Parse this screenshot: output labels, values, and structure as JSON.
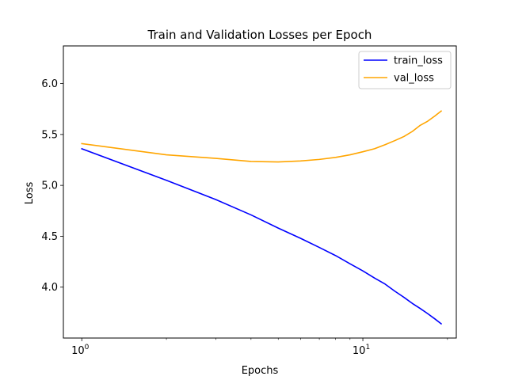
{
  "chart_data": {
    "type": "line",
    "title": "Train and Validation Losses per Epoch",
    "xlabel": "Epochs",
    "ylabel": "Loss",
    "xscale": "log",
    "xlim": [
      0.86,
      21.5
    ],
    "ylim": [
      3.5,
      6.37
    ],
    "grid": false,
    "legend_position": "top-right",
    "x": [
      0,
      1,
      2,
      3,
      4,
      5,
      6,
      7,
      8,
      9,
      10,
      11,
      12,
      13,
      14,
      15,
      16,
      17,
      18,
      19
    ],
    "x_tick_labels": [
      {
        "value": 1,
        "base": "10",
        "exp": "0"
      },
      {
        "value": 10,
        "base": "10",
        "exp": "1"
      }
    ],
    "y_ticks": [
      4.0,
      4.5,
      5.0,
      5.5,
      6.0
    ],
    "y_tick_labels": [
      "4.0",
      "4.5",
      "5.0",
      "5.5",
      "6.0"
    ],
    "series": [
      {
        "name": "train_loss",
        "color": "#0000ff",
        "values": [
          5.36,
          5.36,
          5.05,
          4.86,
          4.71,
          4.58,
          4.48,
          4.39,
          4.31,
          4.23,
          4.16,
          4.09,
          4.03,
          3.96,
          3.9,
          3.84,
          3.79,
          3.74,
          3.69,
          3.64
        ]
      },
      {
        "name": "val_loss",
        "color": "#ffa500",
        "values": [
          5.41,
          5.41,
          5.3,
          5.265,
          5.235,
          5.23,
          5.24,
          5.255,
          5.275,
          5.3,
          5.33,
          5.36,
          5.4,
          5.44,
          5.48,
          5.53,
          5.59,
          5.63,
          5.68,
          5.73
        ]
      }
    ]
  }
}
